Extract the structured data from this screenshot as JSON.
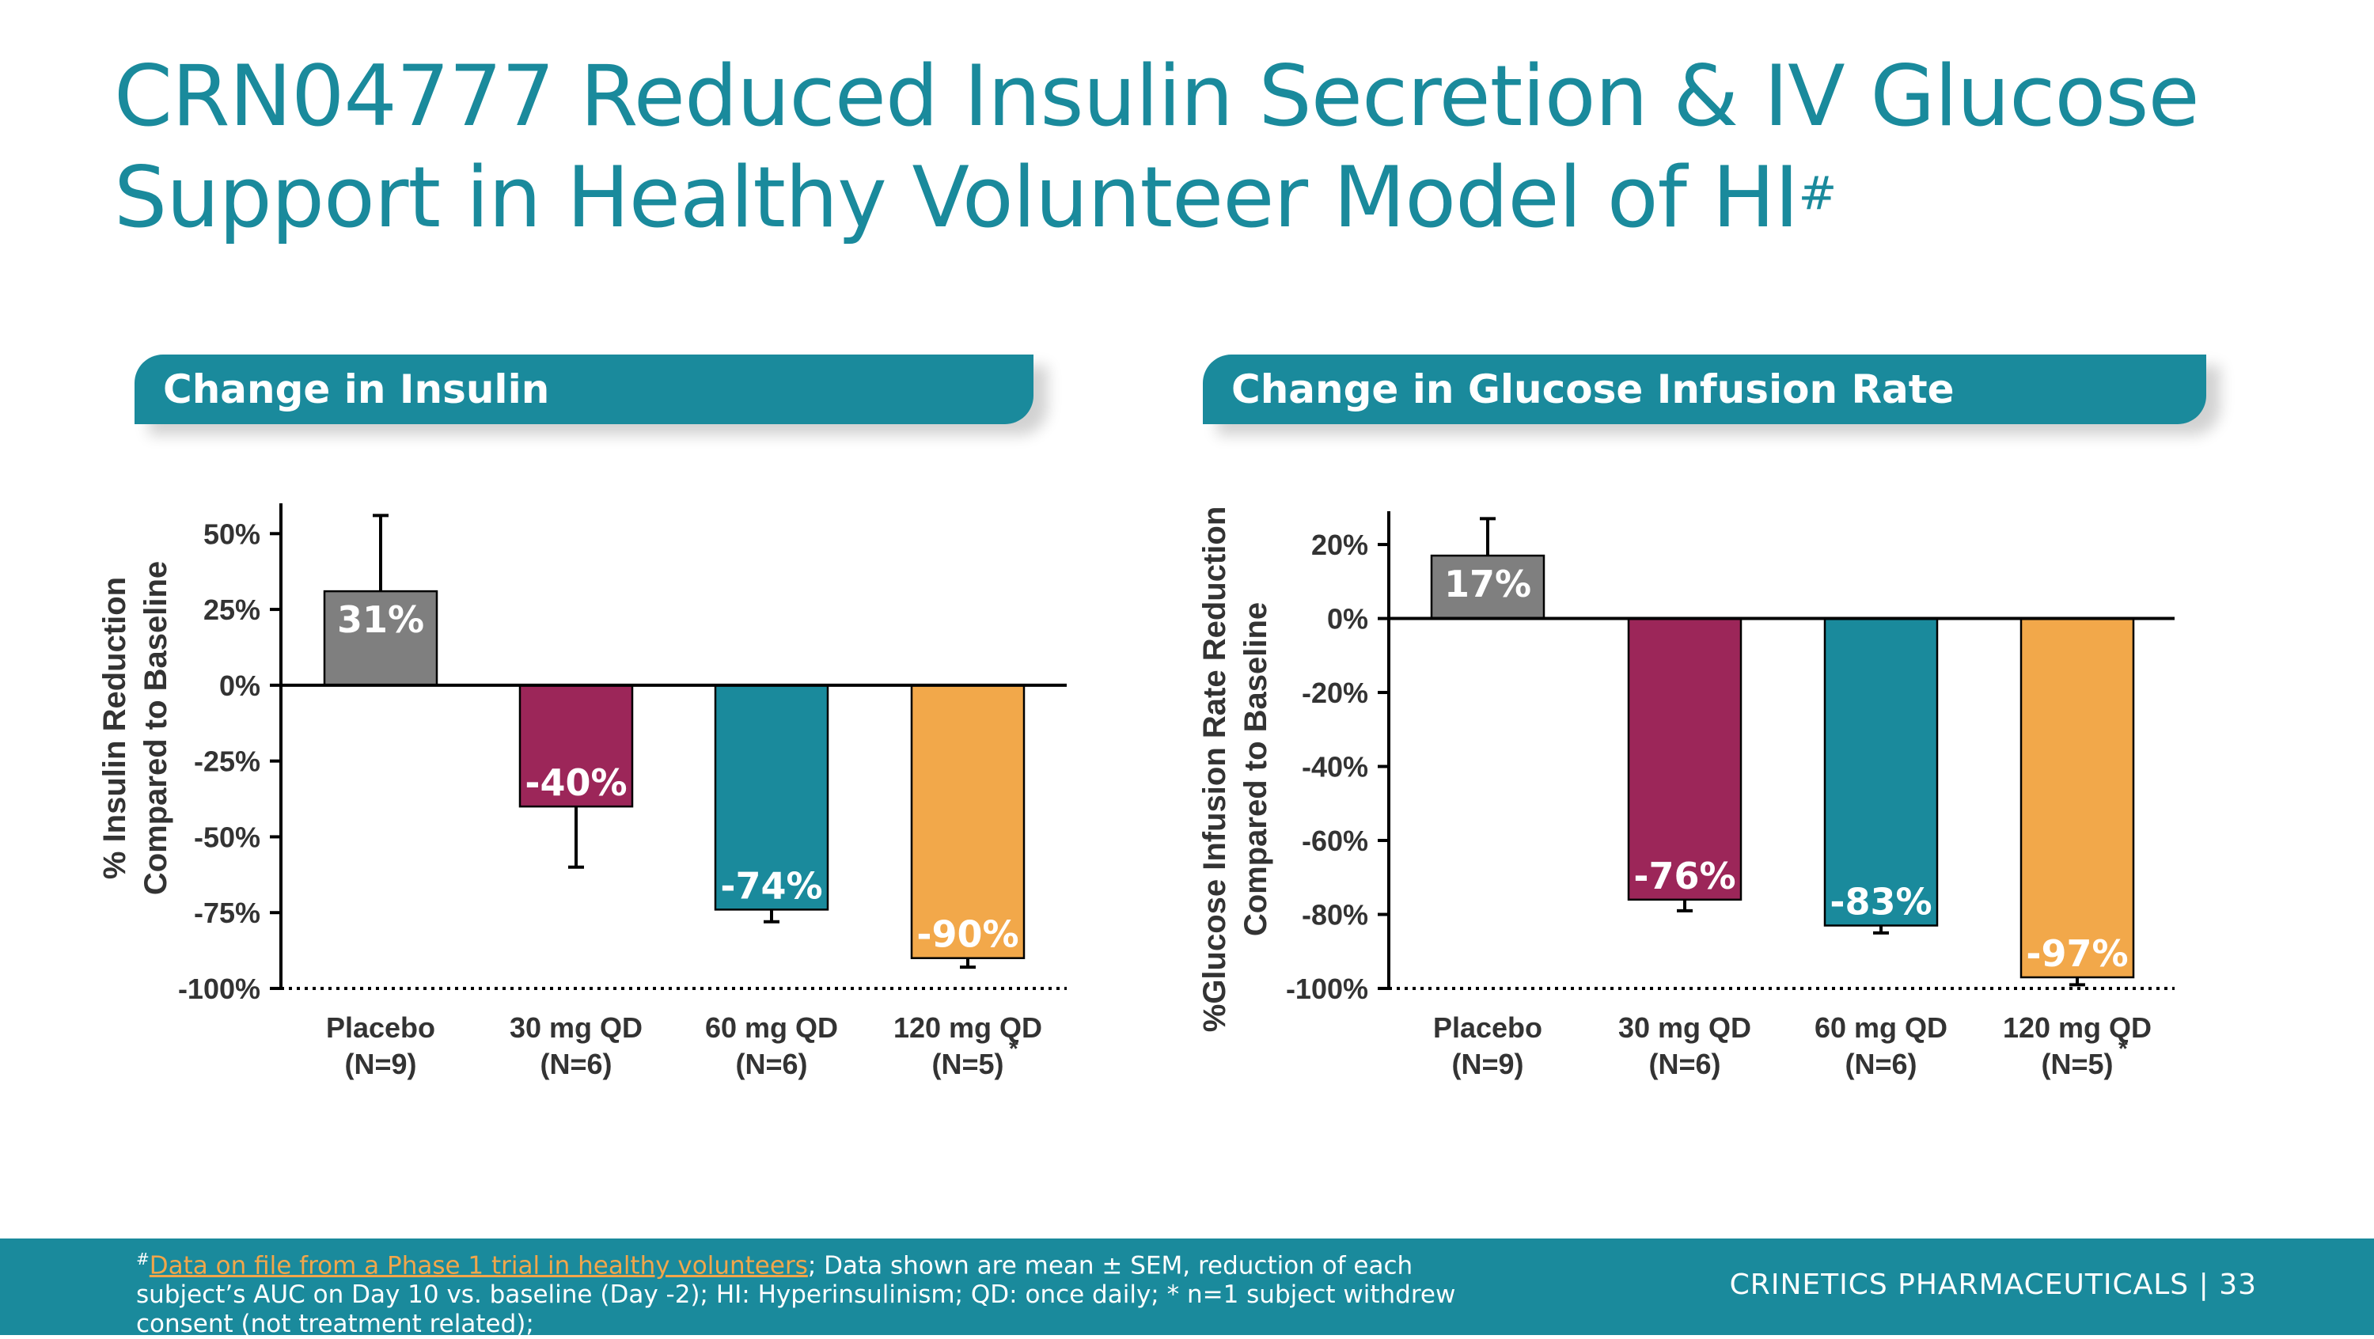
{
  "slide": {
    "title_line1": "CRN04777 Reduced Insulin Secretion & IV Glucose",
    "title_line2": "Support in Healthy Volunteer Model of HI",
    "title_sup": "#"
  },
  "chart_data": [
    {
      "type": "bar",
      "title": "Change in Insulin",
      "ylabel_line1": "% Insulin Reduction",
      "ylabel_line2": "Compared to Baseline",
      "categories": [
        "Placebo",
        "30 mg QD",
        "60 mg QD",
        "120 mg QD"
      ],
      "category_n": [
        "(N=9)",
        "(N=6)",
        "(N=6)",
        "(N=5)"
      ],
      "category_n_marks": [
        "",
        "",
        "",
        "*"
      ],
      "values": [
        31,
        -40,
        -74,
        -90
      ],
      "error_tops": [
        56,
        -60,
        -78,
        -93
      ],
      "data_labels": [
        "31%",
        "-40%",
        "-74%",
        "-90%"
      ],
      "colors": [
        "#7f7f7f",
        "#9c2659",
        "#1a8a9c",
        "#f2a84a"
      ],
      "yticks": [
        50,
        25,
        0,
        -25,
        -50,
        -75,
        -100
      ],
      "ytick_labels": [
        "50%",
        "25%",
        "0%",
        "-25%",
        "-50%",
        "-75%",
        "-100%"
      ],
      "ylim": [
        -100,
        60
      ]
    },
    {
      "type": "bar",
      "title": "Change in Glucose Infusion Rate",
      "ylabel_line1": "%Glucose Infusion Rate Reduction",
      "ylabel_line2": "Compared to Baseline",
      "categories": [
        "Placebo",
        "30 mg QD",
        "60 mg QD",
        "120 mg QD"
      ],
      "category_n": [
        "(N=9)",
        "(N=6)",
        "(N=6)",
        "(N=5)"
      ],
      "category_n_marks": [
        "",
        "",
        "",
        "*"
      ],
      "values": [
        17,
        -76,
        -83,
        -97
      ],
      "error_tops": [
        27,
        -79,
        -85,
        -99
      ],
      "data_labels": [
        "17%",
        "-76%",
        "-83%",
        "-97%"
      ],
      "colors": [
        "#7f7f7f",
        "#9c2659",
        "#1a8a9c",
        "#f2a84a"
      ],
      "yticks": [
        20,
        0,
        -20,
        -40,
        -60,
        -80,
        -100
      ],
      "ytick_labels": [
        "20%",
        "0%",
        "-20%",
        "-40%",
        "-60%",
        "-80%",
        "-100%"
      ],
      "ylim": [
        -100,
        29
      ]
    }
  ],
  "footer": {
    "note_sup": "#",
    "note_link": "Data on file from a Phase 1 trial in healthy volunteers",
    "note_rest": "; Data shown are mean ± SEM, reduction of each subject’s AUC on Day 10 vs. baseline (Day -2);  HI: Hyperinsulinism; QD: once daily; * n=1 subject withdrew consent (not treatment related);",
    "brand": "CRINETICS PHARMACEUTICALS",
    "separator": "|",
    "page_number": "33"
  }
}
